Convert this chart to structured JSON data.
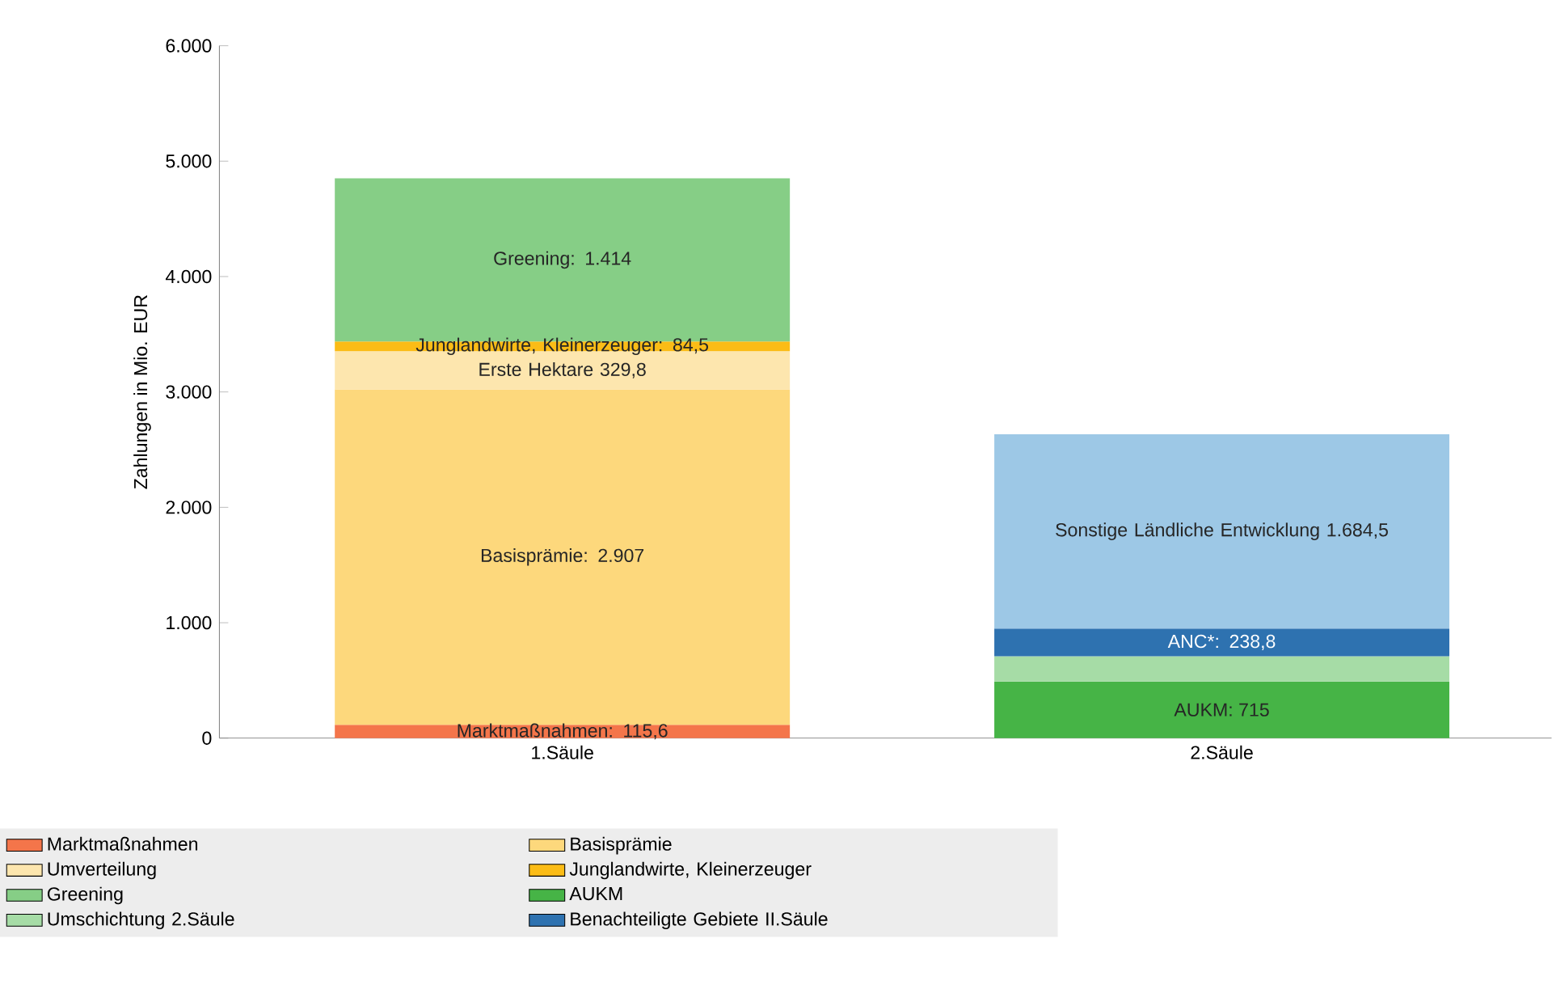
{
  "chart_data": {
    "type": "bar",
    "stacked": true,
    "categories": [
      "1.Säule",
      "2.Säule"
    ],
    "ylabel": "Zahlungen in Mio. EUR",
    "ylim": [
      0,
      6000
    ],
    "yticks": [
      0,
      {
        "value": 1000,
        "label": "1.000"
      },
      {
        "value": 2000,
        "label": "2.000"
      },
      {
        "value": 3000,
        "label": "3.000"
      },
      {
        "value": 4000,
        "label": "4.000"
      },
      {
        "value": 5000,
        "label": "5.000"
      },
      {
        "value": 6000,
        "label": "6.000"
      }
    ],
    "legend": "bottom",
    "series": [
      {
        "name": "Marktmaßnahmen",
        "color": "#f4754a",
        "values": [
          115.6,
          null
        ],
        "value_labels": [
          "Marktmaßnahmen: 115,6",
          null
        ]
      },
      {
        "name": "Basisprämie",
        "color": "#fdd87c",
        "values": [
          2907,
          null
        ],
        "value_labels": [
          "Basisprämie: 2.907",
          null
        ]
      },
      {
        "name": "Umverteilung",
        "color": "#fde6ae",
        "values": [
          329.8,
          null
        ],
        "value_labels": [
          "Erste Hektare  329,8",
          null
        ]
      },
      {
        "name": "Junglandwirte, Kleinerzeuger",
        "color": "#fbbc16",
        "values": [
          84.5,
          null
        ],
        "value_labels": [
          "Junglandwirte, Kleinerzeuger:  84,5",
          null
        ]
      },
      {
        "name": "Greening",
        "color": "#86ce86",
        "values": [
          1414,
          null
        ],
        "value_labels": [
          "Greening: 1.414",
          null
        ]
      },
      {
        "name": "AUKM",
        "color": "#46b446",
        "values": [
          null,
          490
        ],
        "value_labels": [
          null,
          null
        ]
      },
      {
        "name": "Umschichtung 2.Säule",
        "color": "#a6dca6",
        "values": [
          null,
          220
        ],
        "value_labels": [
          null,
          null
        ]
      },
      {
        "name": "Benachteiligte Gebiete II.Säule",
        "color": "#2e72b0",
        "values": [
          null,
          238.8
        ],
        "value_labels": [
          null,
          "ANC*: 238,8"
        ]
      },
      {
        "color": "#9dc8e6",
        "values": [
          null,
          1684.5
        ],
        "value_labels": [
          null,
          "Sonstige Ländliche Entwicklung 1.684,5"
        ]
      }
    ],
    "annotations": [
      "AUKM: 715"
    ]
  }
}
